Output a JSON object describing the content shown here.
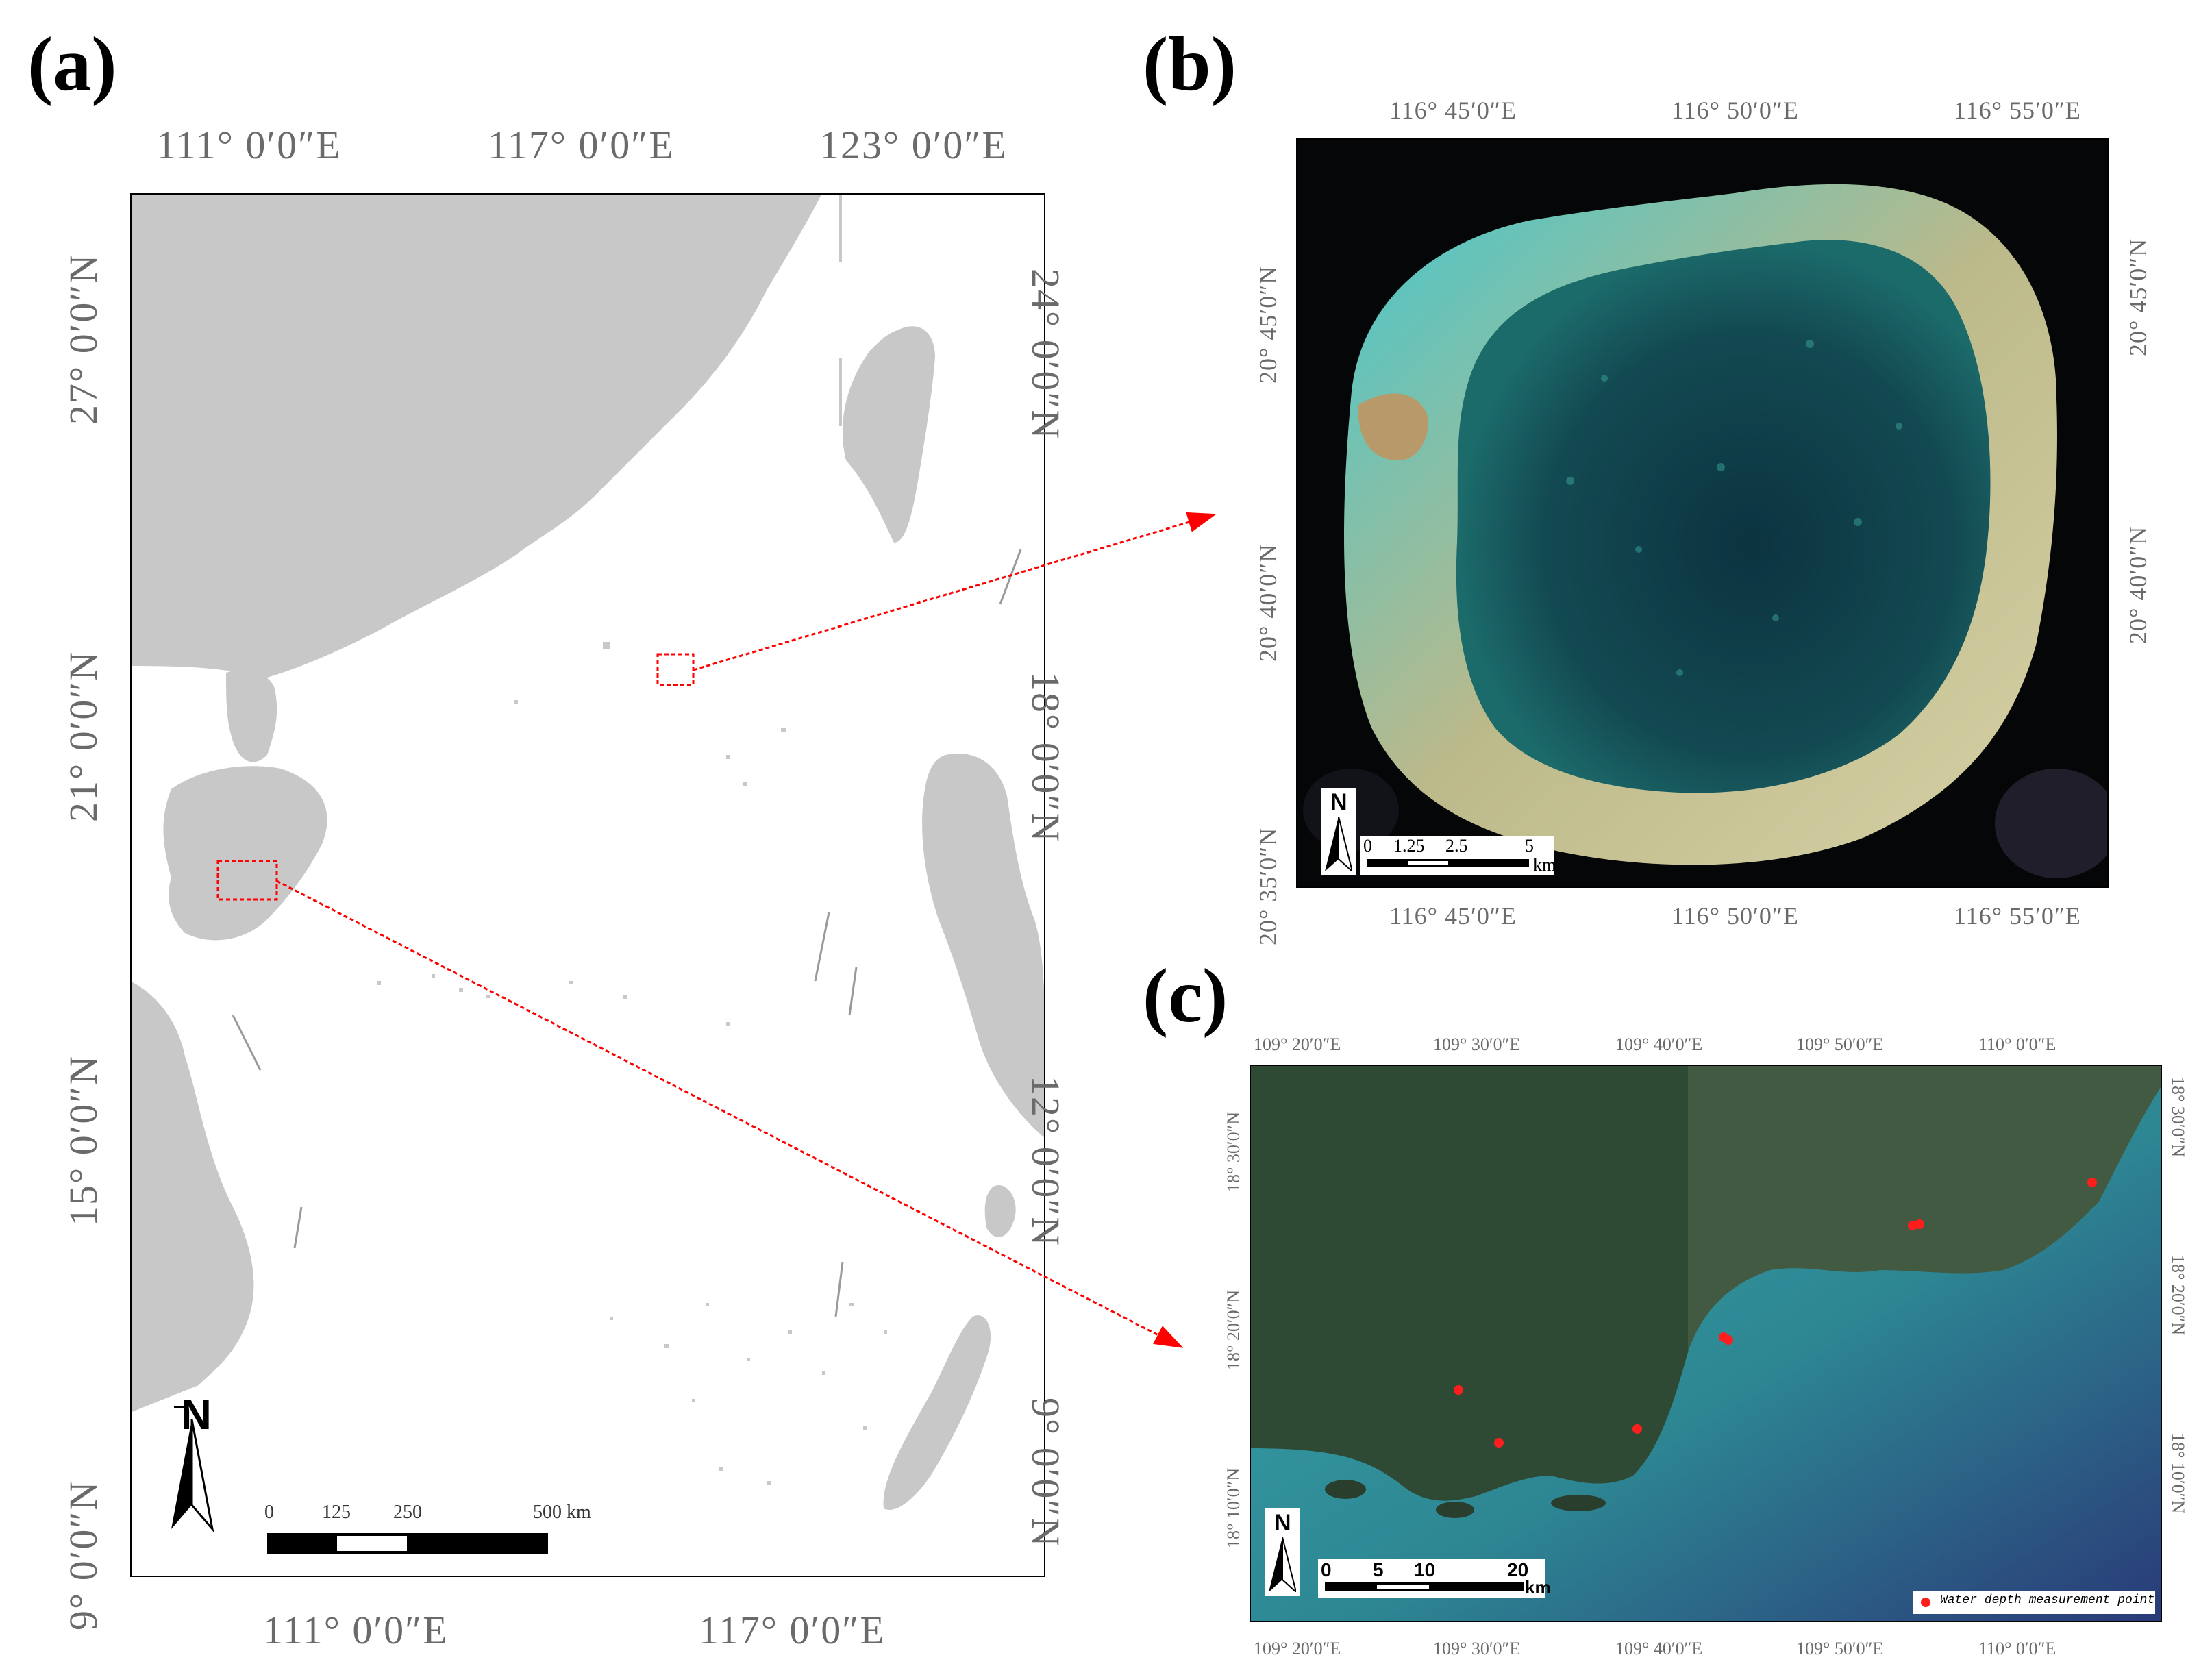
{
  "colors": {
    "land": "#c8c8c8",
    "sea": "#ffffff",
    "frame": "#000000",
    "box": "#ff0000",
    "lagoon": "#0f3f47",
    "reef_sand": "#d6cfa0",
    "shallow": "#3fc0c6",
    "ocean_c": "#2f8b95",
    "forest": "#2e4a33",
    "text": "#6a6a6a"
  },
  "panels": {
    "a": "(a)",
    "b": "(b)",
    "c": "(c)"
  },
  "map_a": {
    "top_lon": [
      "111°  0′0″E",
      "117°  0′0″E",
      "123°  0′0″E"
    ],
    "bottom_lon": [
      "111°  0′0″E",
      "117°  0′0″E"
    ],
    "left_lat": [
      "27°  0′0″N",
      "21°  0′0″N",
      "15°  0′0″N",
      "9°  0′0″N"
    ],
    "right_lat": [
      "24°  0′0″N",
      "18°  0′0″N",
      "12°  0′0″N",
      "9°  0′0″N"
    ],
    "north": "N",
    "scale": {
      "labels": [
        "0",
        "125",
        "250",
        "500 km"
      ]
    },
    "icons": [
      "north-arrow-icon"
    ]
  },
  "map_b": {
    "top_lon": [
      "116°  45′0″E",
      "116°  50′0″E",
      "116°  55′0″E"
    ],
    "bottom_lon": [
      "116°  45′0″E",
      "116°  50′0″E",
      "116°  55′0″E"
    ],
    "left_lat": [
      "20°  45′0″N",
      "20°  40′0″N",
      "20°  35′0″N"
    ],
    "right_lat": [
      "20°  45′0″N",
      "20°  40′0″N"
    ],
    "north": "N",
    "scale": {
      "labels": [
        "0",
        "1.25",
        "2.5",
        "5"
      ],
      "unit": "km"
    }
  },
  "map_c": {
    "top_lon": [
      "109°  20′0″E",
      "109°  30′0″E",
      "109°  40′0″E",
      "109°  50′0″E",
      "110°  0′0″E"
    ],
    "bottom_lon": [
      "109°  20′0″E",
      "109°  30′0″E",
      "109°  40′0″E",
      "109°  50′0″E",
      "110°  0′0″E"
    ],
    "left_lat": [
      "18°  30′0″N",
      "18°  20′0″N",
      "18°  10′0″N"
    ],
    "right_lat": [
      "18°  30′0″N",
      "18°  20′0″N",
      "18°  10′0″N"
    ],
    "north": "N",
    "scale": {
      "labels": [
        "0",
        "5",
        "10",
        "20"
      ],
      "unit": "km"
    },
    "legend": "Water depth measurement point"
  }
}
